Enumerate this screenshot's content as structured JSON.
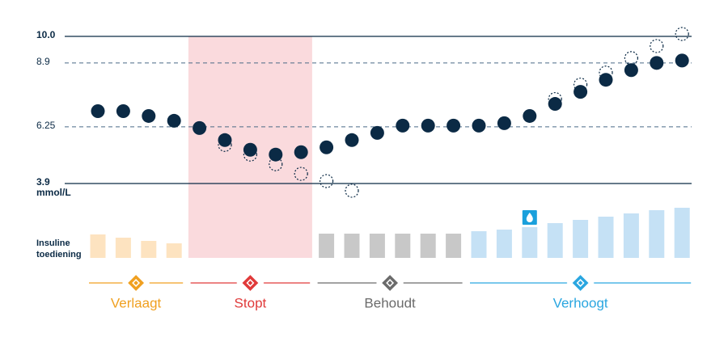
{
  "chart_data": {
    "type": "glucose-insulin",
    "y_unit": "mmol/L",
    "ylim": [
      3.9,
      10
    ],
    "yticks": [
      {
        "value": 10,
        "label": "10.0"
      },
      8.9,
      6.25,
      3.9
    ],
    "series": [
      {
        "name": "glucose",
        "color": "#0b2a45",
        "values": [
          6.9,
          6.9,
          6.7,
          6.5,
          6.2,
          5.7,
          5.3,
          5.1,
          5.2,
          5.4,
          5.7,
          6.0,
          6.3,
          6.3,
          6.3,
          6.3,
          6.4,
          6.7,
          7.2,
          7.7,
          8.2,
          8.6,
          8.9,
          9.0
        ]
      },
      {
        "name": "predicted",
        "color": "#0b2a45",
        "values": [
          null,
          null,
          null,
          null,
          null,
          5.5,
          5.1,
          4.7,
          4.3,
          4.0,
          3.6,
          null,
          null,
          null,
          null,
          null,
          null,
          null,
          7.4,
          8.0,
          8.5,
          9.1,
          9.6,
          10.1
        ]
      }
    ],
    "insulin_label": [
      "Insuline",
      "toediening"
    ],
    "insulin": [
      {
        "name": "Verlaagt",
        "color": "#f0a020",
        "bar_color": "#fde3c0",
        "values": [
          29,
          25,
          21,
          18,
          null,
          null,
          null,
          null,
          null,
          null,
          null,
          null,
          null,
          null,
          null,
          null,
          null,
          null,
          null,
          null,
          null,
          null,
          null,
          null
        ]
      },
      {
        "name": "Stopt",
        "color": "#e03a3a",
        "bar_color": "#fadadd",
        "values": [
          null,
          null,
          null,
          null,
          0,
          0,
          0,
          0,
          0,
          null,
          null,
          null,
          null,
          null,
          null,
          null,
          null,
          null,
          null,
          null,
          null,
          null,
          null,
          null
        ]
      },
      {
        "name": "Behoudt",
        "color": "#6b6b6b",
        "bar_color": "#c8c8c8",
        "values": [
          null,
          null,
          null,
          null,
          null,
          null,
          null,
          null,
          null,
          30,
          30,
          30,
          30,
          30,
          30,
          null,
          null,
          null,
          null,
          null,
          null,
          null,
          null,
          null
        ]
      },
      {
        "name": "Verhoogt",
        "color": "#2aa6e0",
        "bar_color": "#c5e1f5",
        "values": [
          null,
          null,
          null,
          null,
          null,
          null,
          null,
          null,
          null,
          null,
          null,
          null,
          null,
          null,
          null,
          33,
          35,
          38,
          43,
          47,
          51,
          55,
          59,
          62
        ]
      }
    ]
  }
}
